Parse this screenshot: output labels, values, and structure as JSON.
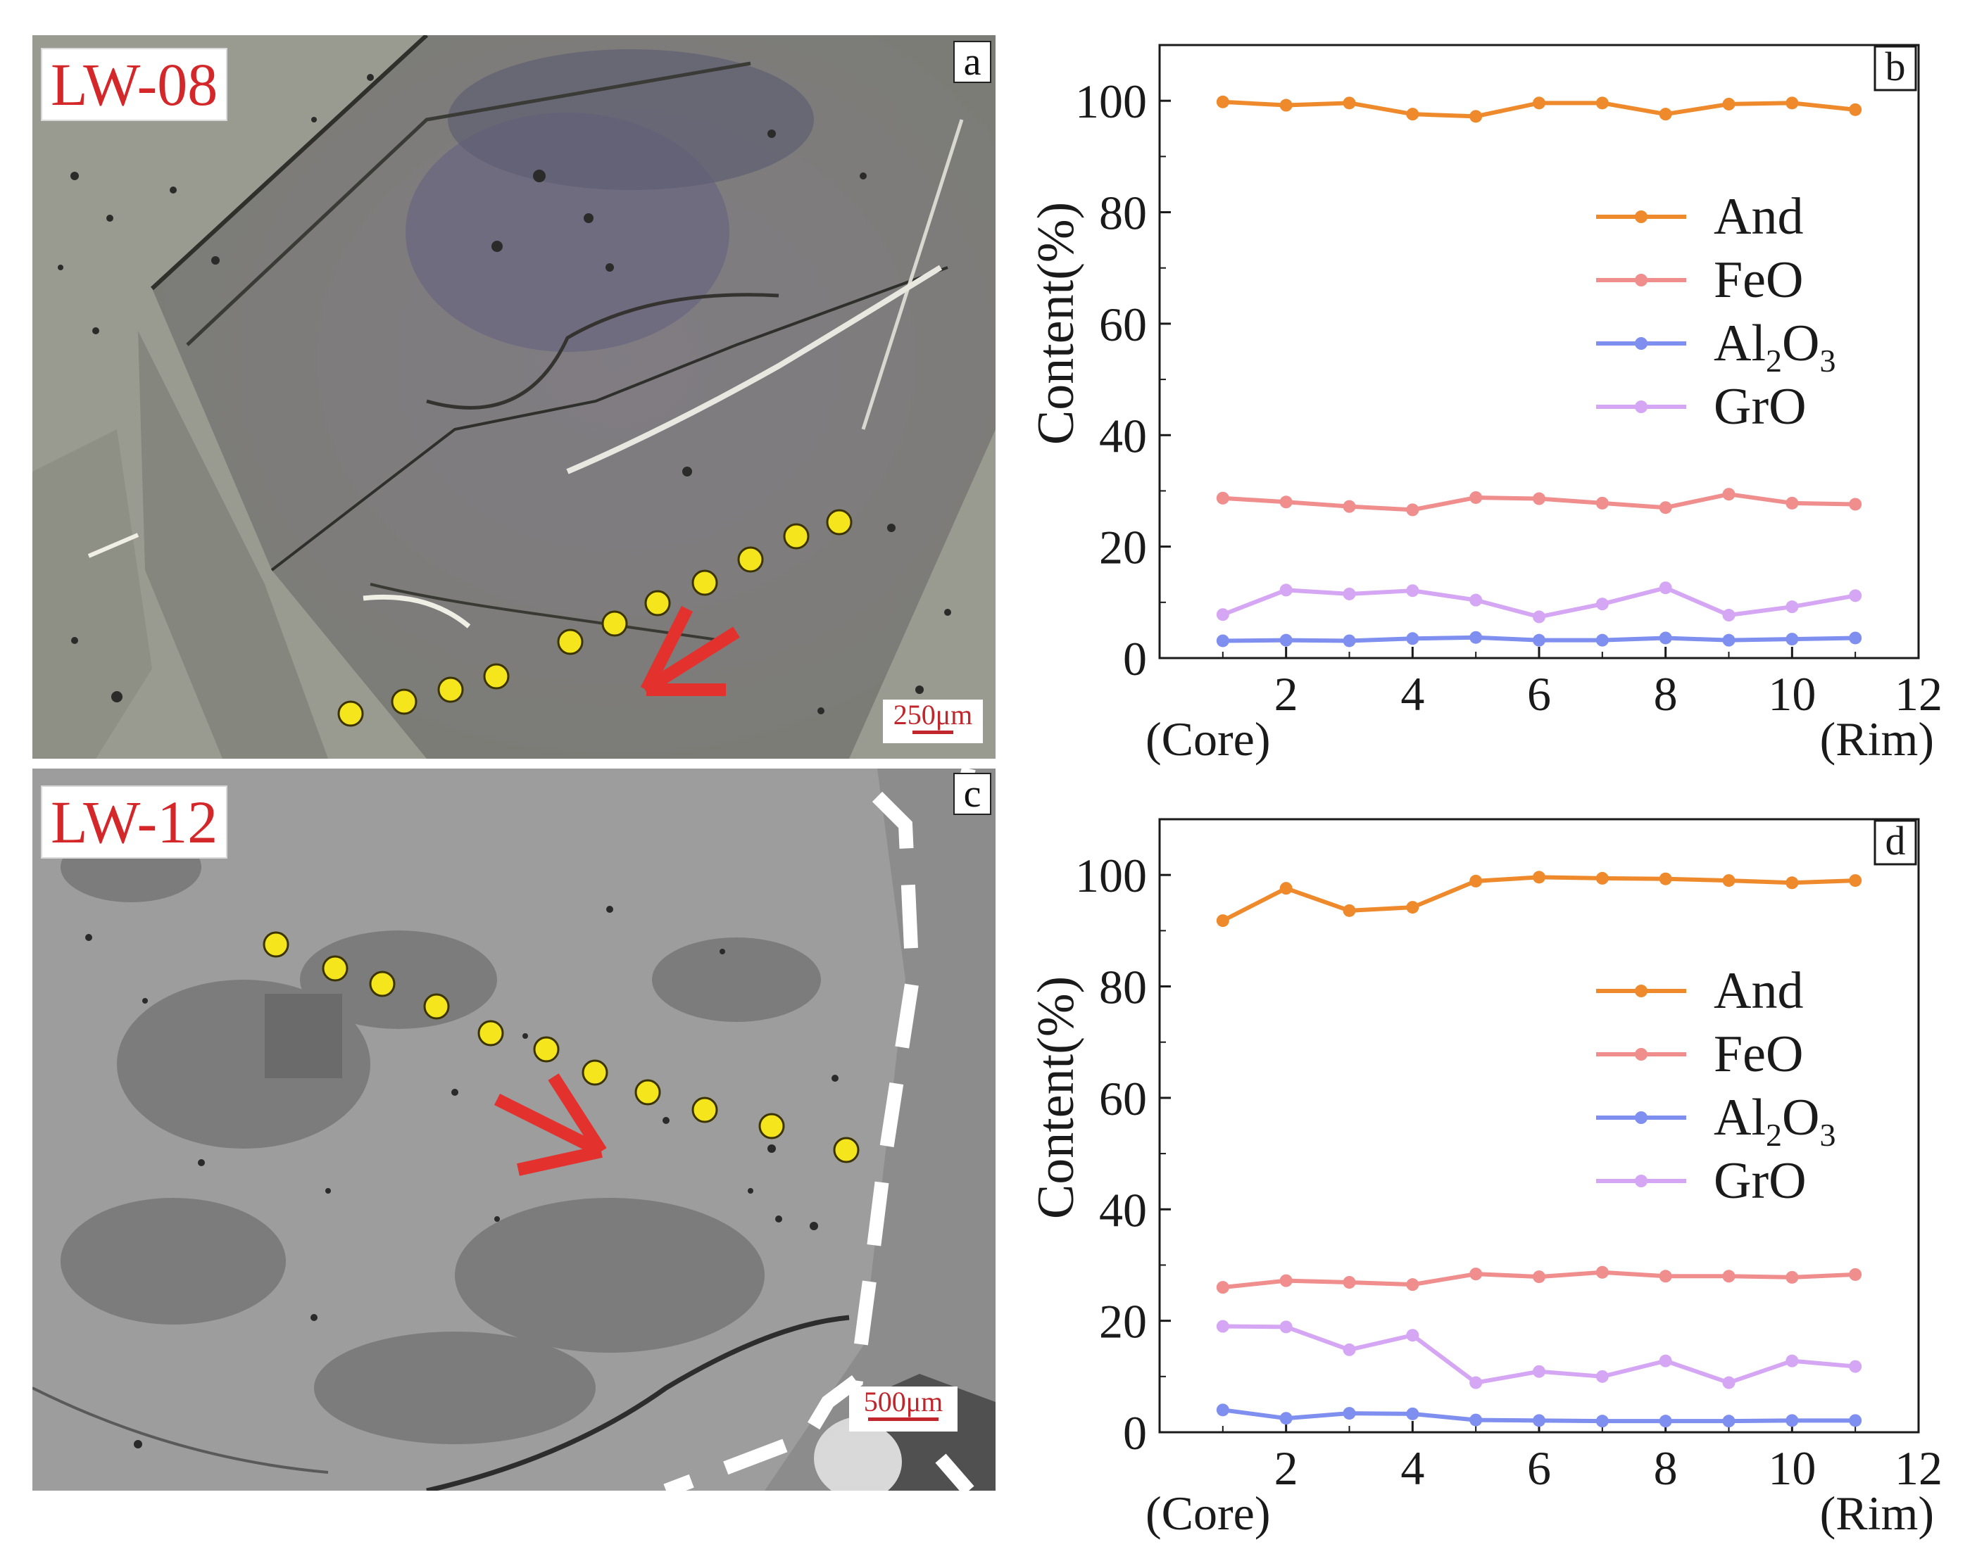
{
  "figure": {
    "panel_a": {
      "sample": "LW-08",
      "letter": "a",
      "scale": "250μm"
    },
    "panel_c": {
      "sample": "LW-12",
      "letter": "c",
      "scale": "500μm"
    }
  },
  "colors": {
    "And": "#ee8a2c",
    "FeO": "#f08d8d",
    "Al2O3": "#7f8ff0",
    "GrO": "#d5a6f3",
    "traverse_dot": "#f5e51c",
    "arrow": "#e3312d"
  },
  "chart_data": [
    {
      "type": "line",
      "panel": "b",
      "ylabel": "Content(%)",
      "xlabel_left": "(Core)",
      "xlabel_right": "(Rim)",
      "xlim": [
        0,
        12
      ],
      "ylim": [
        0,
        110
      ],
      "xticks": [
        "2",
        "4",
        "6",
        "8",
        "10",
        "12"
      ],
      "yticks": [
        "0",
        "20",
        "40",
        "60",
        "80",
        "100"
      ],
      "x": [
        1,
        2,
        3,
        4,
        5,
        6,
        7,
        8,
        9,
        10,
        11
      ],
      "legend": [
        "And",
        "FeO",
        "Al2O3",
        "GrO"
      ],
      "series": [
        {
          "name": "And",
          "legend_main": "And",
          "legend_sub": "",
          "legend_tail": "",
          "values": [
            99.8,
            99.2,
            99.6,
            97.6,
            97.2,
            99.6,
            99.6,
            97.6,
            99.4,
            99.6,
            98.4
          ]
        },
        {
          "name": "FeO",
          "legend_main": "FeO",
          "legend_sub": "",
          "legend_tail": "",
          "values": [
            28.7,
            28.0,
            27.2,
            26.6,
            28.8,
            28.6,
            27.8,
            27.0,
            29.4,
            27.8,
            27.6
          ]
        },
        {
          "name": "Al2O3",
          "legend_main": "Al",
          "legend_sub": "2",
          "legend_tail": "O",
          "legend_sub2": "3",
          "values": [
            3.1,
            3.2,
            3.1,
            3.5,
            3.7,
            3.2,
            3.2,
            3.6,
            3.2,
            3.4,
            3.6
          ]
        },
        {
          "name": "GrO",
          "legend_main": "GrO",
          "legend_sub": "",
          "legend_tail": "",
          "values": [
            7.8,
            12.2,
            11.5,
            12.1,
            10.4,
            7.4,
            9.7,
            12.6,
            7.7,
            9.2,
            11.2
          ]
        }
      ]
    },
    {
      "type": "line",
      "panel": "d",
      "ylabel": "Content(%)",
      "xlabel_left": "(Core)",
      "xlabel_right": "(Rim)",
      "xlim": [
        0,
        12
      ],
      "ylim": [
        0,
        110
      ],
      "xticks": [
        "2",
        "4",
        "6",
        "8",
        "10",
        "12"
      ],
      "yticks": [
        "0",
        "20",
        "40",
        "60",
        "80",
        "100"
      ],
      "x": [
        1,
        2,
        3,
        4,
        5,
        6,
        7,
        8,
        9,
        10,
        11
      ],
      "legend": [
        "And",
        "FeO",
        "Al2O3",
        "GrO"
      ],
      "series": [
        {
          "name": "And",
          "legend_main": "And",
          "legend_sub": "",
          "legend_tail": "",
          "values": [
            91.8,
            97.6,
            93.6,
            94.2,
            98.9,
            99.6,
            99.4,
            99.3,
            99.0,
            98.6,
            99.0
          ]
        },
        {
          "name": "FeO",
          "legend_main": "FeO",
          "legend_sub": "",
          "legend_tail": "",
          "values": [
            26.0,
            27.2,
            26.9,
            26.5,
            28.4,
            27.9,
            28.7,
            28.0,
            28.0,
            27.8,
            28.3
          ]
        },
        {
          "name": "Al2O3",
          "legend_main": "Al",
          "legend_sub": "2",
          "legend_tail": "O",
          "legend_sub2": "3",
          "values": [
            4.0,
            2.5,
            3.4,
            3.3,
            2.2,
            2.1,
            2.0,
            2.0,
            2.0,
            2.1,
            2.1
          ]
        },
        {
          "name": "GrO",
          "legend_main": "GrO",
          "legend_sub": "",
          "legend_tail": "",
          "values": [
            19.0,
            18.9,
            14.8,
            17.4,
            8.9,
            10.9,
            10.0,
            12.8,
            8.9,
            12.8,
            11.8
          ]
        }
      ]
    }
  ]
}
